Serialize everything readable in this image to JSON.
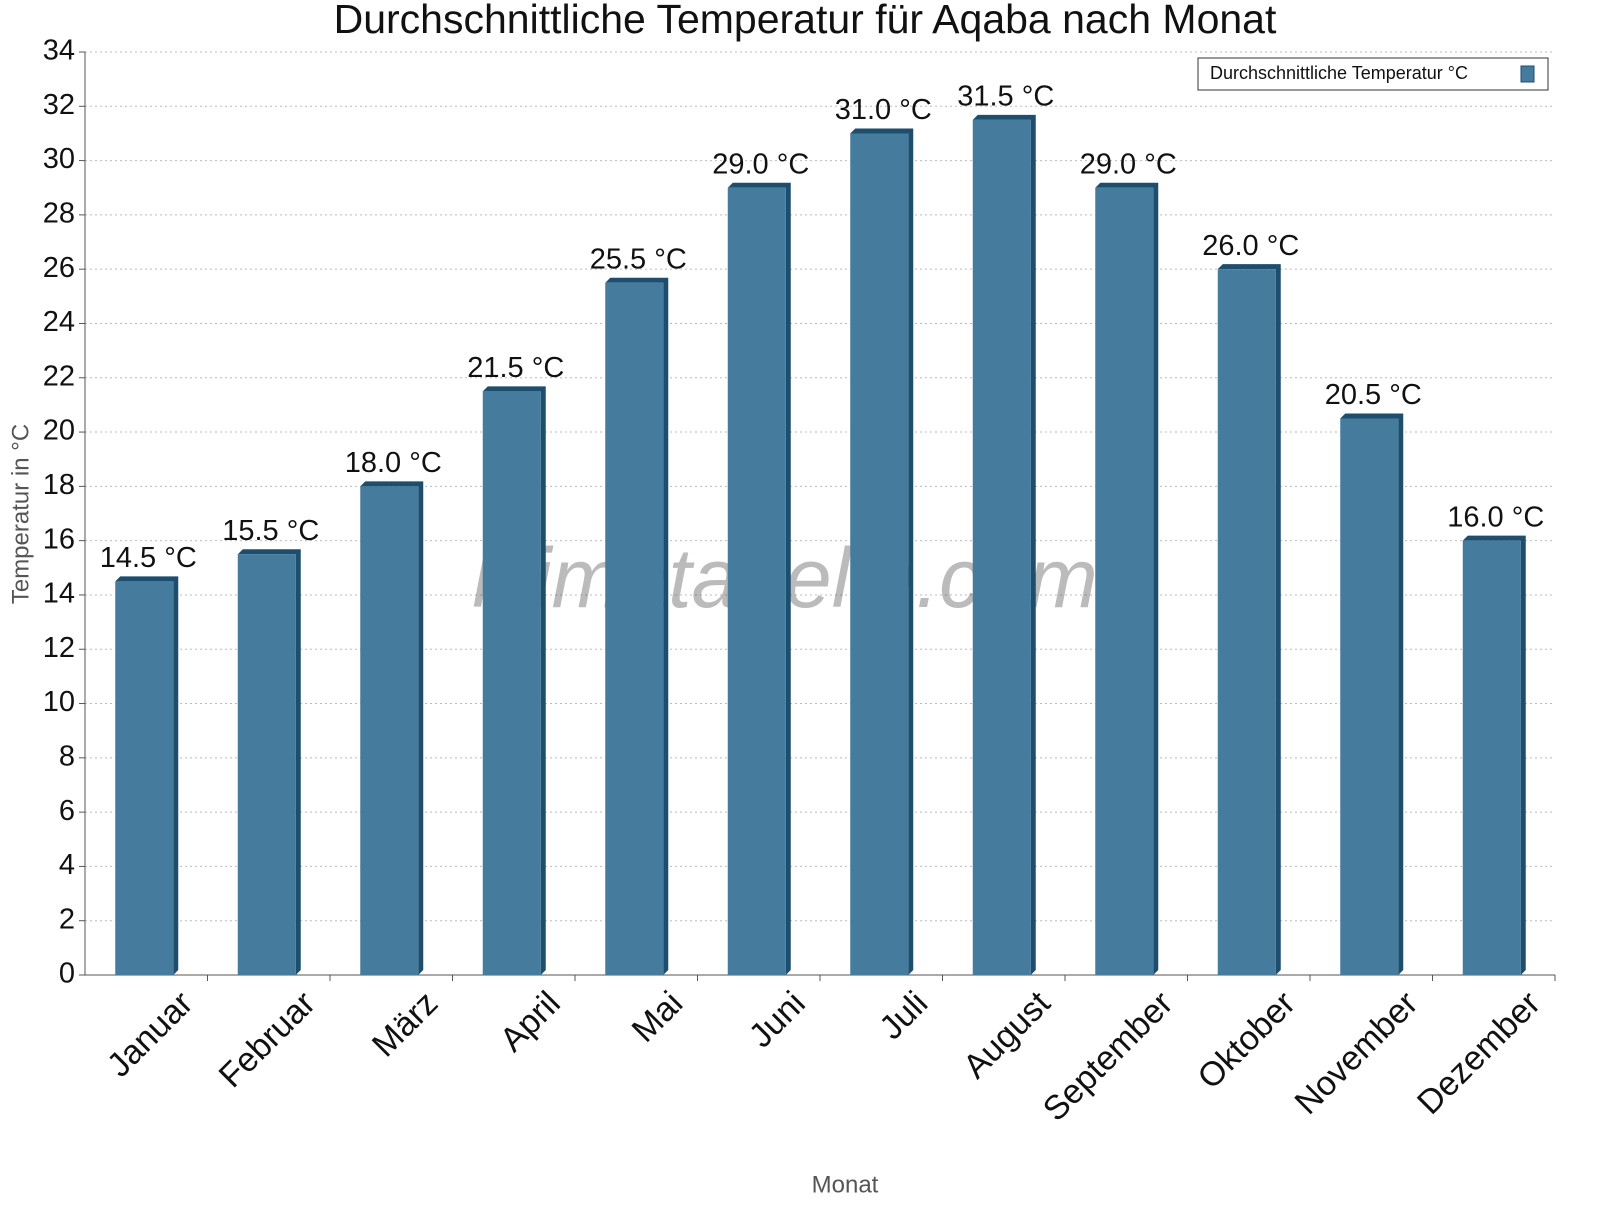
{
  "chart_data": {
    "type": "bar",
    "title": "Durchschnittliche Temperatur für Aqaba nach Monat",
    "x_label": "Monat",
    "y_label": "Temperatur in °C",
    "watermark": "klimatabelle.com",
    "categories": [
      "Januar",
      "Februar",
      "März",
      "April",
      "Mai",
      "Juni",
      "Juli",
      "August",
      "September",
      "Oktober",
      "November",
      "Dezember"
    ],
    "series": [
      {
        "name": "Durchschnittliche Temperatur °C",
        "color": "#457b9d",
        "edge_color": "#1d4e6e",
        "values": [
          14.5,
          15.5,
          18.0,
          21.5,
          25.5,
          29.0,
          31.0,
          31.5,
          29.0,
          26.0,
          20.5,
          16.0
        ],
        "value_labels": [
          "14.5 °C",
          "15.5 °C",
          "18.0 °C",
          "21.5 °C",
          "25.5 °C",
          "29.0 °C",
          "31.0 °C",
          "31.5 °C",
          "29.0 °C",
          "26.0 °C",
          "20.5 °C",
          "16.0 °C"
        ]
      }
    ],
    "ylim": [
      0,
      34
    ],
    "yticks": [
      0,
      2,
      4,
      6,
      8,
      10,
      12,
      14,
      16,
      18,
      20,
      22,
      24,
      26,
      28,
      30,
      32,
      34
    ],
    "grid": true,
    "legend": "upper right"
  }
}
